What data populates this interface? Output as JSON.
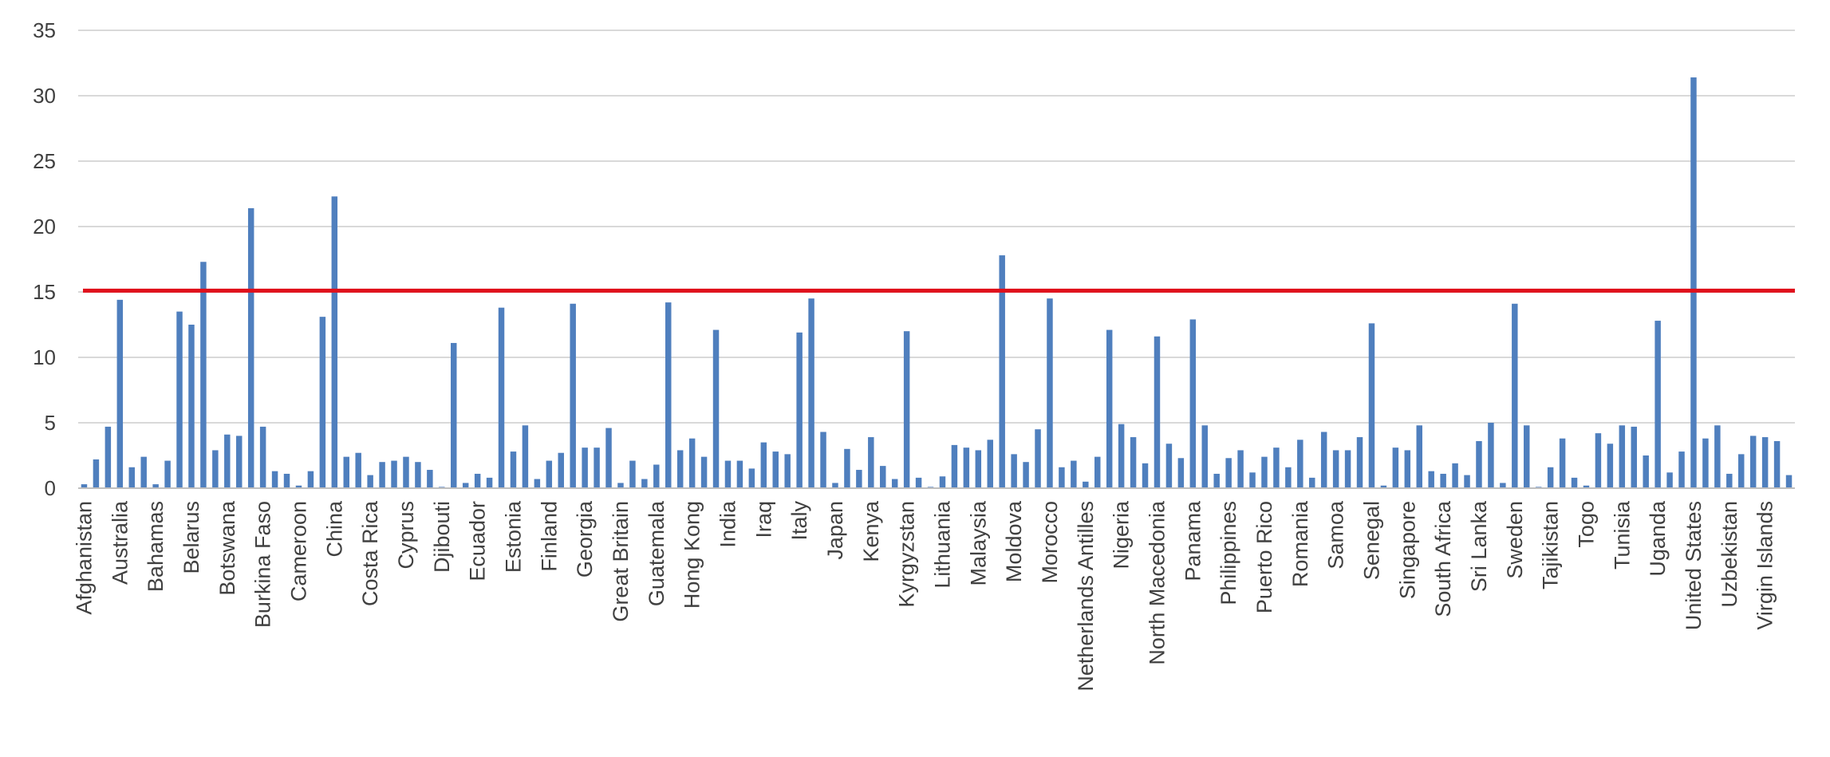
{
  "chart_data": {
    "type": "bar",
    "title": "",
    "xlabel": "",
    "ylabel": "",
    "ylim": [
      0,
      35
    ],
    "yticks": [
      0,
      5,
      10,
      15,
      20,
      25,
      30,
      35
    ],
    "grid": "horizontal",
    "legend": "none",
    "bar_color": "#4F7FBE",
    "threshold": {
      "value": 15.1,
      "color": "#E0101B"
    },
    "label_every": 3,
    "categories": [
      "Afghanistan",
      "",
      "",
      "Australia",
      "",
      "",
      "Bahamas",
      "",
      "",
      "Belarus",
      "",
      "",
      "Botswana",
      "",
      "",
      "Burkina Faso",
      "",
      "",
      "Cameroon",
      "",
      "",
      "China",
      "",
      "",
      "Costa Rica",
      "",
      "",
      "Cyprus",
      "",
      "",
      "Djibouti",
      "",
      "",
      "Ecuador",
      "",
      "",
      "Estonia",
      "",
      "",
      "Finland",
      "",
      "",
      "Georgia",
      "",
      "",
      "Great Britain",
      "",
      "",
      "Guatemala",
      "",
      "",
      "Hong Kong",
      "",
      "",
      "India",
      "",
      "",
      "Iraq",
      "",
      "",
      "Italy",
      "",
      "",
      "Japan",
      "",
      "",
      "Kenya",
      "",
      "",
      "Kyrgyzstan",
      "",
      "",
      "Lithuania",
      "",
      "",
      "Malaysia",
      "",
      "",
      "Moldova",
      "",
      "",
      "Morocco",
      "",
      "",
      "Netherlands Antilles",
      "",
      "",
      "Nigeria",
      "",
      "",
      "North Macedonia",
      "",
      "",
      "Panama",
      "",
      "",
      "Philippines",
      "",
      "",
      "Puerto Rico",
      "",
      "",
      "Romania",
      "",
      "",
      "Samoa",
      "",
      "",
      "Senegal",
      "",
      "",
      "Singapore",
      "",
      "",
      "South Africa",
      "",
      "",
      "Sri Lanka",
      "",
      "",
      "Sweden",
      "",
      "",
      "Tajikistan",
      "",
      "",
      "Togo",
      "",
      "",
      "Tunisia",
      "",
      "",
      "Uganda",
      "",
      "",
      "United States",
      "",
      "",
      "Uzbekistan",
      "",
      "",
      "Virgin Islands",
      "",
      ""
    ],
    "values": [
      0.3,
      2.2,
      4.7,
      14.4,
      1.6,
      2.4,
      0.3,
      2.1,
      13.5,
      12.5,
      17.3,
      2.9,
      4.1,
      4.0,
      21.4,
      4.7,
      1.3,
      1.1,
      0.2,
      1.3,
      13.1,
      22.3,
      2.4,
      2.7,
      1.0,
      2.0,
      2.1,
      2.4,
      2.0,
      1.4,
      0.1,
      11.1,
      0.4,
      1.1,
      0.8,
      13.8,
      2.8,
      4.8,
      0.7,
      2.1,
      2.7,
      14.1,
      3.1,
      3.1,
      4.6,
      0.4,
      2.1,
      0.7,
      1.8,
      14.2,
      2.9,
      3.8,
      2.4,
      12.1,
      2.1,
      2.1,
      1.5,
      3.5,
      2.8,
      2.6,
      11.9,
      14.5,
      4.3,
      0.4,
      3.0,
      1.4,
      3.9,
      1.7,
      0.7,
      12.0,
      0.8,
      0.1,
      0.9,
      3.3,
      3.1,
      2.9,
      3.7,
      17.8,
      2.6,
      2.0,
      4.5,
      14.5,
      1.6,
      2.1,
      0.5,
      2.4,
      12.1,
      4.9,
      3.9,
      1.9,
      11.6,
      3.4,
      2.3,
      12.9,
      4.8,
      1.1,
      2.3,
      2.9,
      1.2,
      2.4,
      3.1,
      1.6,
      3.7,
      0.8,
      4.3,
      2.9,
      2.9,
      3.9,
      12.6,
      0.2,
      3.1,
      2.9,
      4.8,
      1.3,
      1.1,
      1.9,
      1.0,
      3.6,
      5.0,
      0.4,
      14.1,
      4.8,
      0.1,
      1.6,
      3.8,
      0.8,
      0.2,
      4.2,
      3.4,
      4.8,
      4.7,
      2.5,
      12.8,
      1.2,
      2.8,
      31.4,
      3.8,
      4.8,
      1.1,
      2.6,
      4.0,
      3.9,
      3.6,
      1.0
    ]
  }
}
